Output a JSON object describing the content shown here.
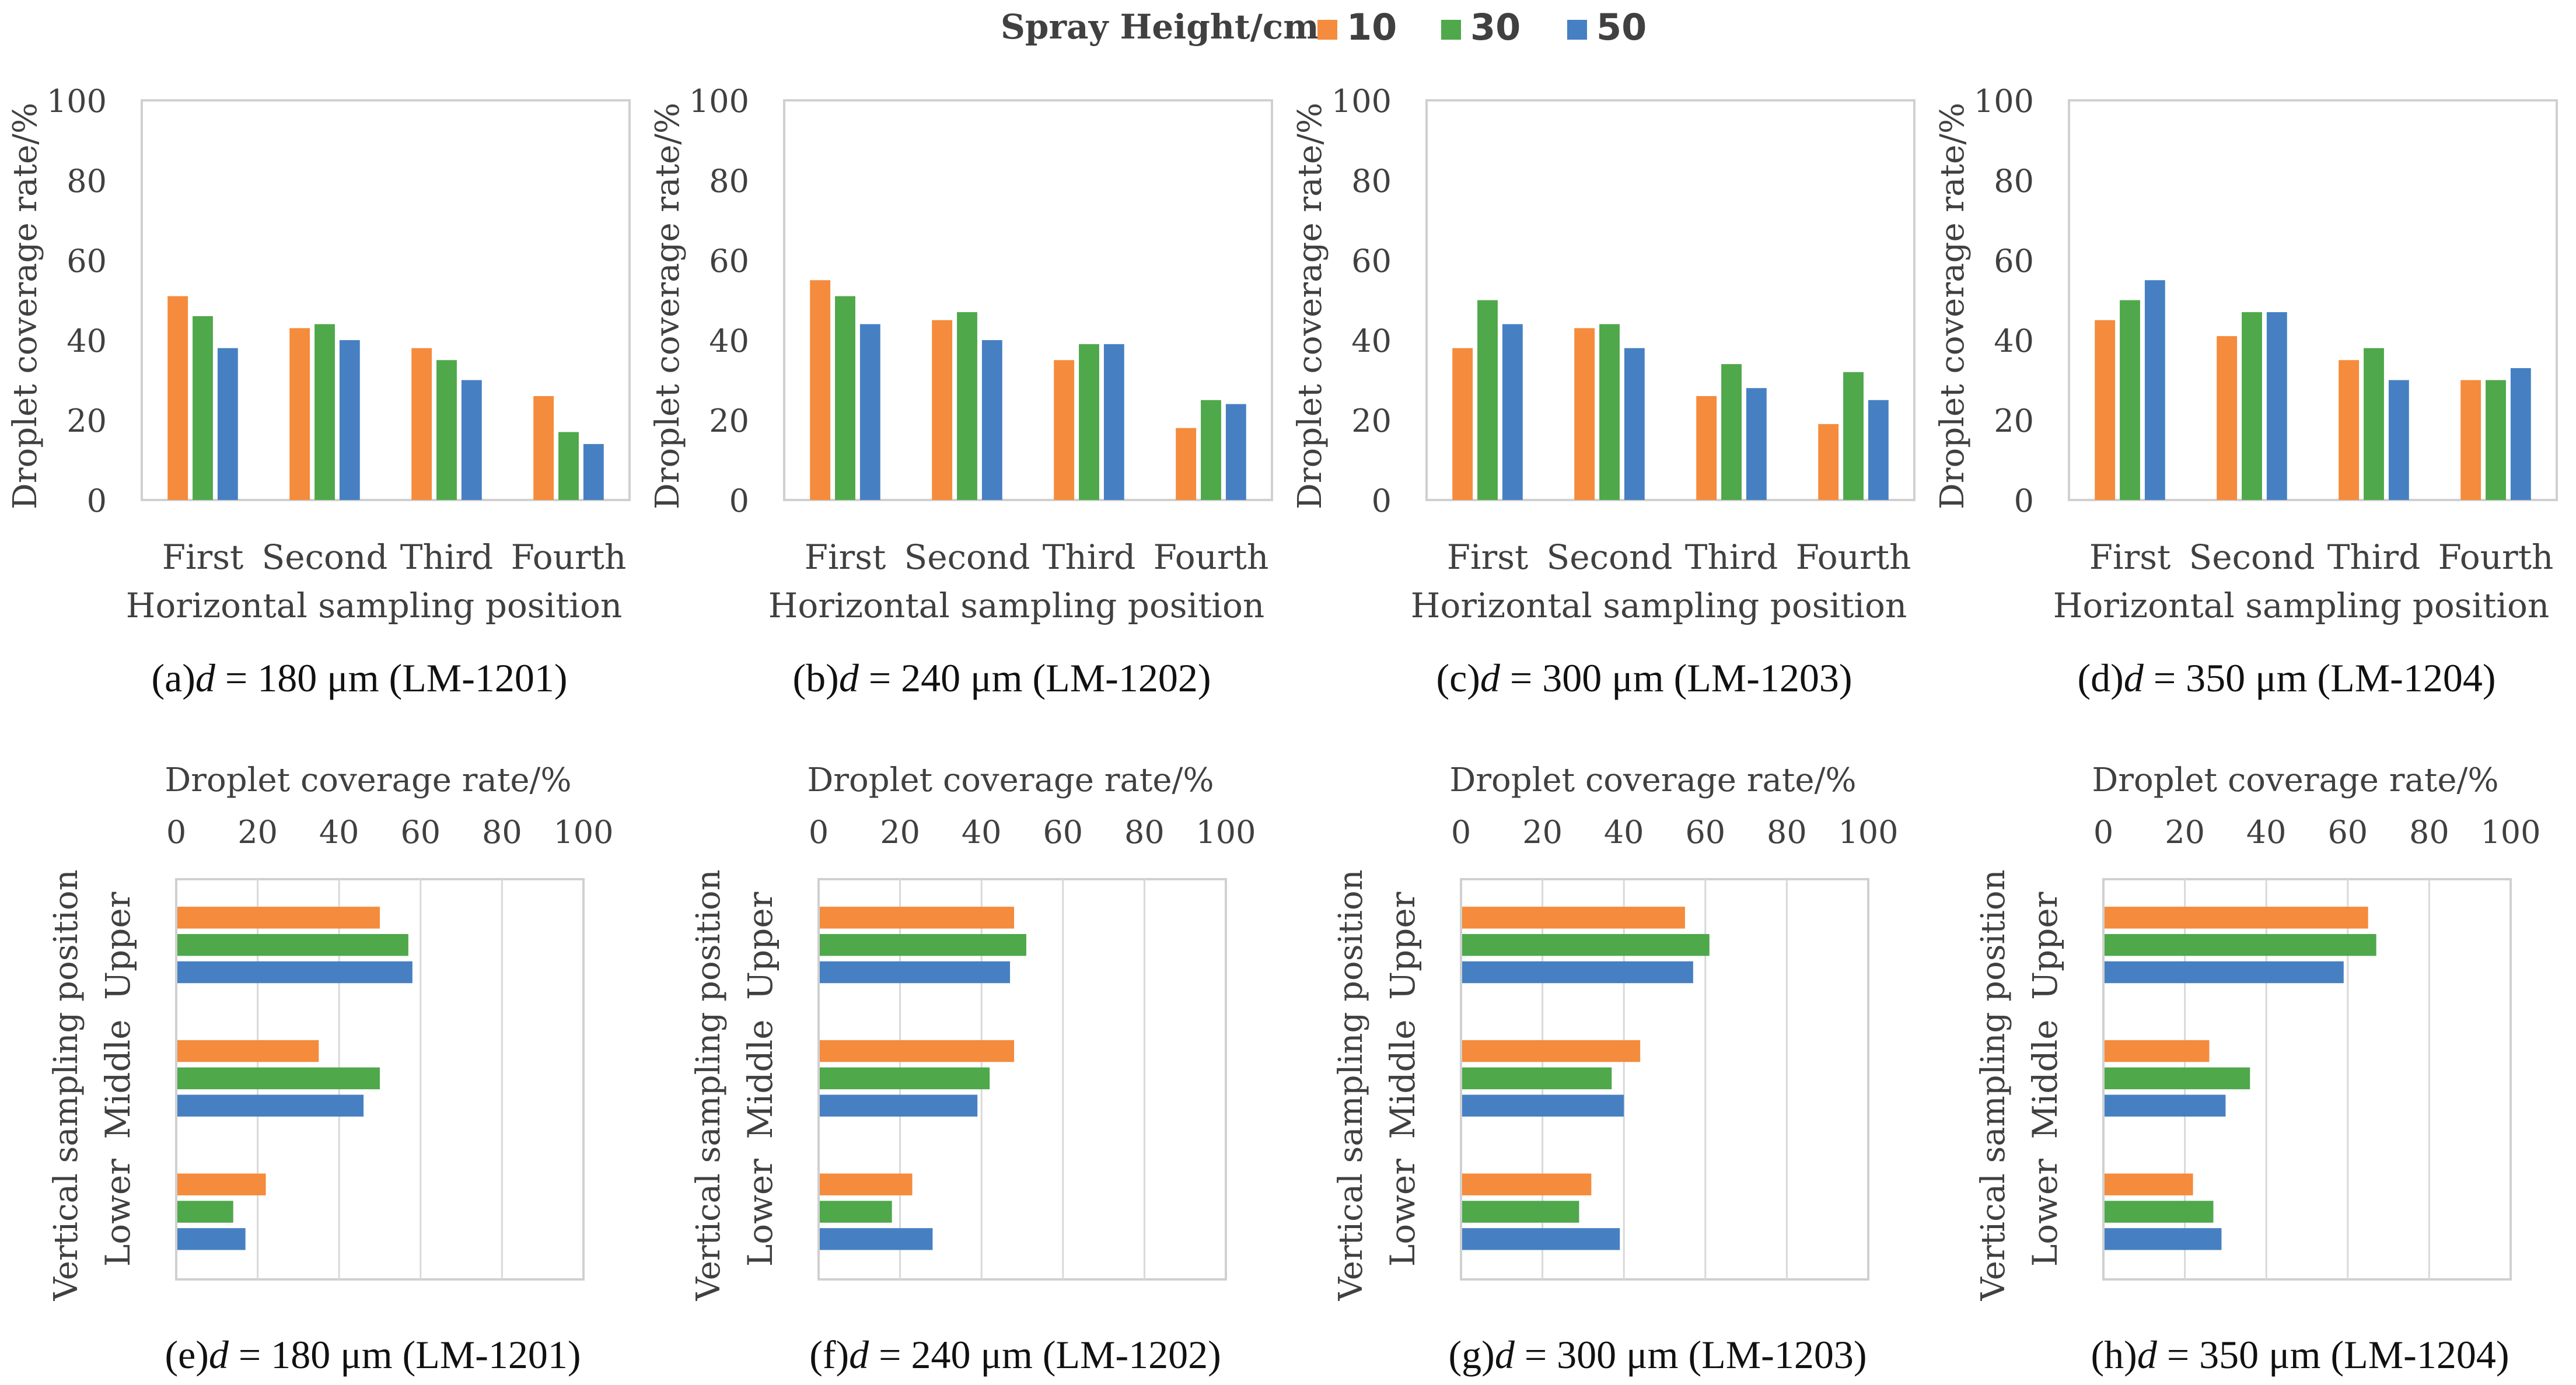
{
  "legend": {
    "title": "Spray Height/cm",
    "items": [
      {
        "label": "10",
        "color": "#F58B3C"
      },
      {
        "label": "30",
        "color": "#4FA84A"
      },
      {
        "label": "50",
        "color": "#4680C2"
      }
    ]
  },
  "chart_data": [
    {
      "type": "bar",
      "orientation": "vertical",
      "caption_prefix": "(a)",
      "caption_var": "d",
      "caption_rest": " = 180 μm (LM-1201)",
      "categories": [
        "First",
        "Second",
        "Third",
        "Fourth"
      ],
      "series": [
        {
          "name": "10",
          "values": [
            51,
            43,
            38,
            26
          ]
        },
        {
          "name": "30",
          "values": [
            46,
            44,
            35,
            17
          ]
        },
        {
          "name": "50",
          "values": [
            38,
            40,
            30,
            14
          ]
        }
      ],
      "xlabel": "Horizontal sampling position",
      "ylabel": "Droplet coverage rate/%",
      "ylim": [
        0,
        100
      ],
      "ticks": [
        "0",
        "20",
        "40",
        "60",
        "80",
        "100"
      ]
    },
    {
      "type": "bar",
      "orientation": "vertical",
      "caption_prefix": "(b)",
      "caption_var": "d",
      "caption_rest": " = 240 μm (LM-1202)",
      "categories": [
        "First",
        "Second",
        "Third",
        "Fourth"
      ],
      "series": [
        {
          "name": "10",
          "values": [
            55,
            45,
            35,
            18
          ]
        },
        {
          "name": "30",
          "values": [
            51,
            47,
            39,
            25
          ]
        },
        {
          "name": "50",
          "values": [
            44,
            40,
            39,
            24
          ]
        }
      ],
      "xlabel": "Horizontal sampling position",
      "ylabel": "Droplet coverage rate/%",
      "ylim": [
        0,
        100
      ],
      "ticks": [
        "0",
        "20",
        "40",
        "60",
        "80",
        "100"
      ]
    },
    {
      "type": "bar",
      "orientation": "vertical",
      "caption_prefix": "(c)",
      "caption_var": "d",
      "caption_rest": " = 300 μm (LM-1203)",
      "categories": [
        "First",
        "Second",
        "Third",
        "Fourth"
      ],
      "series": [
        {
          "name": "10",
          "values": [
            38,
            43,
            26,
            19
          ]
        },
        {
          "name": "30",
          "values": [
            50,
            44,
            34,
            32
          ]
        },
        {
          "name": "50",
          "values": [
            44,
            38,
            28,
            25
          ]
        }
      ],
      "xlabel": "Horizontal sampling position",
      "ylabel": "Droplet coverage rate/%",
      "ylim": [
        0,
        100
      ],
      "ticks": [
        "0",
        "20",
        "40",
        "60",
        "80",
        "100"
      ]
    },
    {
      "type": "bar",
      "orientation": "vertical",
      "caption_prefix": "(d)",
      "caption_var": "d",
      "caption_rest": " = 350 μm (LM-1204)",
      "categories": [
        "First",
        "Second",
        "Third",
        "Fourth"
      ],
      "series": [
        {
          "name": "10",
          "values": [
            45,
            41,
            35,
            30
          ]
        },
        {
          "name": "30",
          "values": [
            50,
            47,
            38,
            30
          ]
        },
        {
          "name": "50",
          "values": [
            55,
            47,
            30,
            33
          ]
        }
      ],
      "xlabel": "Horizontal sampling position",
      "ylabel": "Droplet coverage rate/%",
      "ylim": [
        0,
        100
      ],
      "ticks": [
        "0",
        "20",
        "40",
        "60",
        "80",
        "100"
      ]
    },
    {
      "type": "bar",
      "orientation": "horizontal",
      "caption_prefix": "(e)",
      "caption_var": "d",
      "caption_rest": " = 180 μm (LM-1201)",
      "categories": [
        "Upper",
        "Middle",
        "Lower"
      ],
      "series": [
        {
          "name": "10",
          "values": [
            50,
            35,
            22
          ]
        },
        {
          "name": "30",
          "values": [
            57,
            50,
            14
          ]
        },
        {
          "name": "50",
          "values": [
            58,
            46,
            17
          ]
        }
      ],
      "xlabel": "Droplet coverage rate/%",
      "ylabel": "Vertical sampling position",
      "xlim": [
        0,
        100
      ],
      "ticks": [
        "0",
        "20",
        "40",
        "60",
        "80",
        "100"
      ]
    },
    {
      "type": "bar",
      "orientation": "horizontal",
      "caption_prefix": "(f)",
      "caption_var": "d",
      "caption_rest": " = 240 μm (LM-1202)",
      "categories": [
        "Upper",
        "Middle",
        "Lower"
      ],
      "series": [
        {
          "name": "10",
          "values": [
            48,
            48,
            23
          ]
        },
        {
          "name": "30",
          "values": [
            51,
            42,
            18
          ]
        },
        {
          "name": "50",
          "values": [
            47,
            39,
            28
          ]
        }
      ],
      "xlabel": "Droplet coverage rate/%",
      "ylabel": "Vertical sampling position",
      "xlim": [
        0,
        100
      ],
      "ticks": [
        "0",
        "20",
        "40",
        "60",
        "80",
        "100"
      ]
    },
    {
      "type": "bar",
      "orientation": "horizontal",
      "caption_prefix": "(g)",
      "caption_var": "d",
      "caption_rest": " = 300 μm (LM-1203)",
      "categories": [
        "Upper",
        "Middle",
        "Lower"
      ],
      "series": [
        {
          "name": "10",
          "values": [
            55,
            44,
            32
          ]
        },
        {
          "name": "30",
          "values": [
            61,
            37,
            29
          ]
        },
        {
          "name": "50",
          "values": [
            57,
            40,
            39
          ]
        }
      ],
      "xlabel": "Droplet coverage rate/%",
      "ylabel": "Vertical sampling position",
      "xlim": [
        0,
        100
      ],
      "ticks": [
        "0",
        "20",
        "40",
        "60",
        "80",
        "100"
      ]
    },
    {
      "type": "bar",
      "orientation": "horizontal",
      "caption_prefix": "(h)",
      "caption_var": "d",
      "caption_rest": " = 350 μm (LM-1204)",
      "categories": [
        "Upper",
        "Middle",
        "Lower"
      ],
      "series": [
        {
          "name": "10",
          "values": [
            65,
            26,
            22
          ]
        },
        {
          "name": "30",
          "values": [
            67,
            36,
            27
          ]
        },
        {
          "name": "50",
          "values": [
            59,
            30,
            29
          ]
        }
      ],
      "xlabel": "Droplet coverage rate/%",
      "ylabel": "Vertical sampling position",
      "xlim": [
        0,
        100
      ],
      "ticks": [
        "0",
        "20",
        "40",
        "60",
        "80",
        "100"
      ]
    }
  ]
}
